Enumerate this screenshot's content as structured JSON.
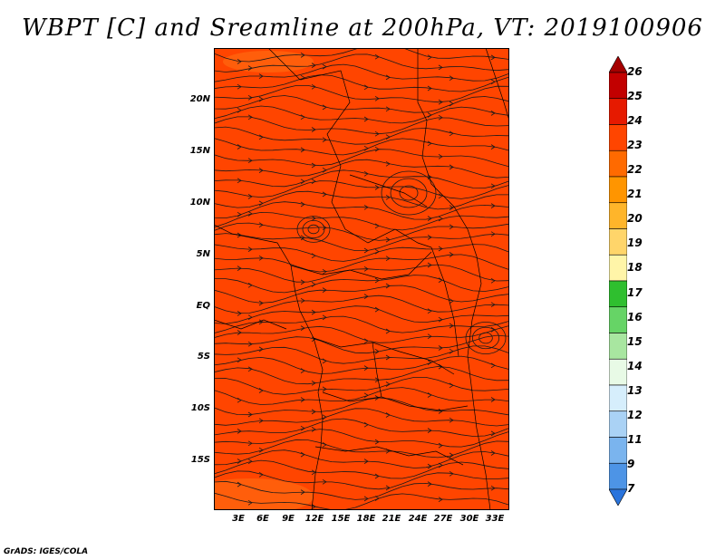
{
  "title": "WBPT [C] and Sreamline at 200hPa, VT: 2019100906",
  "credit": "GrADS: IGES/COLA",
  "map": {
    "variable": "Wet-bulb potential temperature",
    "pressure_level": "200hPa",
    "dominant_color": "#ff4500",
    "accent_color": "#ff6a10",
    "line_color": "#1a1a1a",
    "lat_labels": [
      "20N",
      "15N",
      "10N",
      "5N",
      "EQ",
      "5S",
      "10S",
      "15S"
    ],
    "lon_labels": [
      "3E",
      "6E",
      "9E",
      "12E",
      "15E",
      "18E",
      "21E",
      "24E",
      "27E",
      "30E",
      "33E"
    ]
  },
  "colorbar": {
    "labels": [
      "26",
      "25",
      "24",
      "23",
      "22",
      "21",
      "20",
      "19",
      "18",
      "17",
      "16",
      "15",
      "14",
      "13",
      "12",
      "11",
      "9",
      "7"
    ],
    "colors": [
      "#a50000",
      "#c20000",
      "#e61a00",
      "#ff4500",
      "#ff6a00",
      "#ff9500",
      "#ffb52a",
      "#ffd56a",
      "#fff5a8",
      "#2fbf2f",
      "#66d466",
      "#a8e6a0",
      "#e8fae6",
      "#d6eefc",
      "#aad2f5",
      "#7ab4ee",
      "#4d94e6",
      "#2a74dc"
    ]
  }
}
